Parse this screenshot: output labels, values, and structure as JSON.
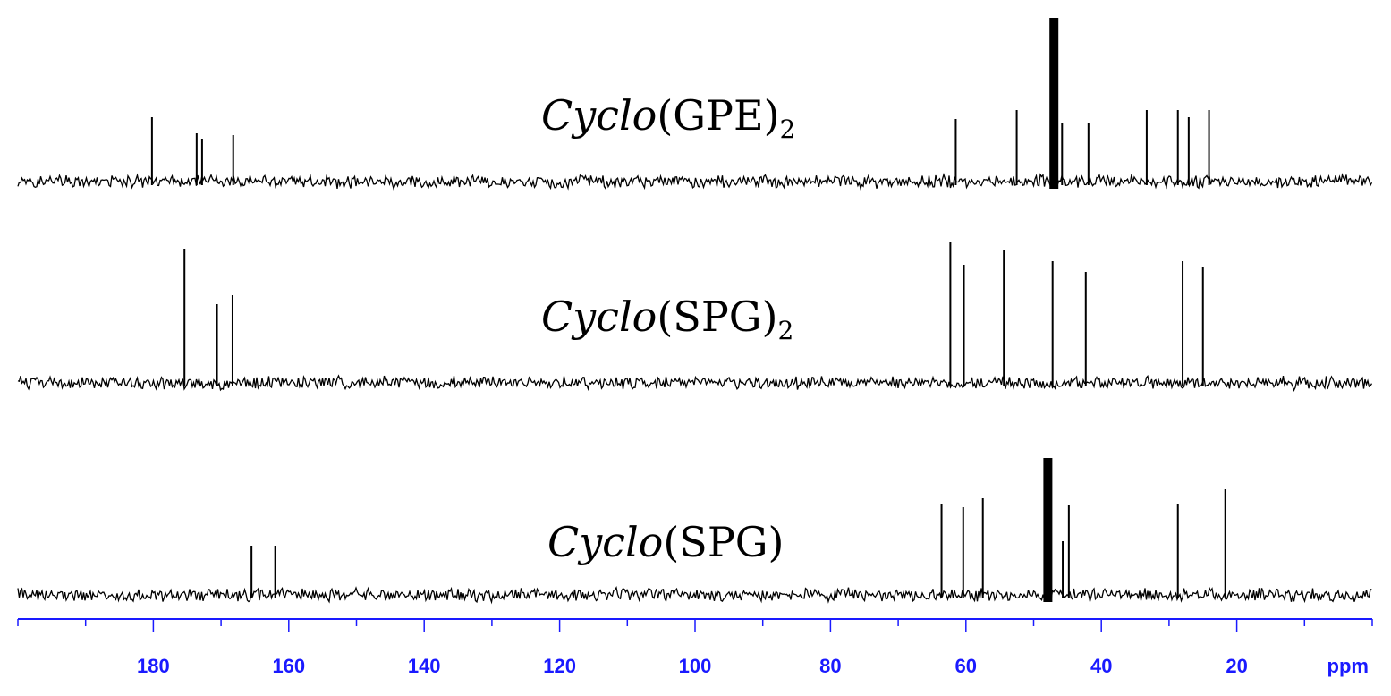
{
  "chart_data": {
    "type": "line",
    "axis": {
      "unit_label": "ppm",
      "reversed": true,
      "range": [
        200,
        0
      ],
      "ticks": [
        180,
        160,
        140,
        120,
        100,
        80,
        60,
        40,
        20
      ],
      "tick_labels": [
        "180",
        "160",
        "140",
        "120",
        "100",
        "80",
        "60",
        "40",
        "20"
      ],
      "minor_tick_step": 10,
      "color": "#1a1aff"
    },
    "series": [
      {
        "name_italic": "Cyclo",
        "name_rest": "(GPE)",
        "name_sub": "2",
        "peaks_ppm": [
          180.2,
          173.6,
          172.8,
          168.2,
          61.5,
          52.5,
          45.8,
          41.9,
          33.3,
          28.7,
          27.1,
          24.1
        ],
        "solvent_peak_ppm": 47.0
      },
      {
        "name_italic": "Cyclo",
        "name_rest": "(SPG)",
        "name_sub": "2",
        "peaks_ppm": [
          175.4,
          170.6,
          168.3,
          62.3,
          60.3,
          54.4,
          47.2,
          42.3,
          28.0,
          25.0
        ],
        "solvent_peak_ppm": null
      },
      {
        "name_italic": "Cyclo",
        "name_rest": "(SPG)",
        "name_sub": "",
        "peaks_ppm": [
          165.5,
          162.0,
          63.6,
          60.4,
          57.5,
          45.7,
          44.8,
          28.7,
          21.7
        ],
        "solvent_peak_ppm": 47.9
      }
    ]
  }
}
